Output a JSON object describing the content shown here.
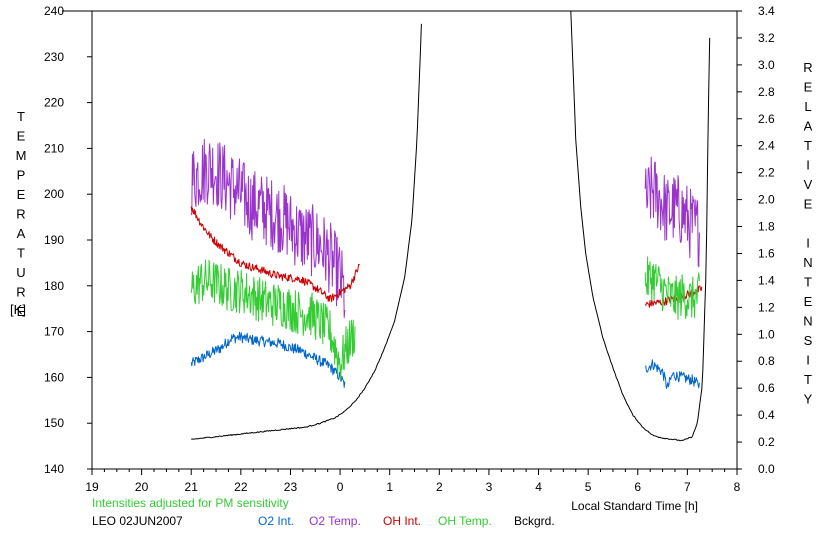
{
  "chart_data": {
    "type": "line",
    "y_left": {
      "label": "TEMPERATURE",
      "unit": "[K]",
      "min": 140,
      "max": 240,
      "ticks": [
        140,
        150,
        160,
        170,
        180,
        190,
        200,
        210,
        220,
        230,
        240
      ]
    },
    "y_right": {
      "label": "RELATIVE INTENSITY",
      "min": 0.0,
      "max": 3.4,
      "ticks": [
        "0.0",
        "0.2",
        "0.4",
        "0.6",
        "0.8",
        "1.0",
        "1.2",
        "1.4",
        "1.6",
        "1.8",
        "2.0",
        "2.2",
        "2.4",
        "2.6",
        "2.8",
        "3.0",
        "3.2",
        "3.4"
      ]
    },
    "x": {
      "label": "Local Standard Time [h]",
      "min": 19,
      "max": 32,
      "tick_labels": [
        "19",
        "20",
        "21",
        "22",
        "23",
        "0",
        "1",
        "2",
        "3",
        "4",
        "5",
        "6",
        "7",
        "8"
      ]
    },
    "note": "Intensities adjusted for PM sensitivity",
    "station": "LEO 02JUN2007",
    "colors": {
      "o2_int": "#0066cc",
      "o2_temp": "#9933cc",
      "oh_int": "#cc0000",
      "oh_temp": "#33cc33",
      "bckgrd": "#000000",
      "note": "#33cc33"
    },
    "series": [
      {
        "key": "o2_int",
        "name": "O2 Int.",
        "axis": "right",
        "color": "#0066cc",
        "segments": [
          [
            [
              21.0,
              0.78
            ],
            [
              21.2,
              0.82
            ],
            [
              21.4,
              0.86
            ],
            [
              21.6,
              0.9
            ],
            [
              21.8,
              0.97
            ],
            [
              22.0,
              0.98
            ],
            [
              22.2,
              0.96
            ],
            [
              22.4,
              0.95
            ],
            [
              22.6,
              0.94
            ],
            [
              22.8,
              0.93
            ],
            [
              23.0,
              0.9
            ],
            [
              23.2,
              0.88
            ],
            [
              23.4,
              0.84
            ],
            [
              23.6,
              0.8
            ],
            [
              23.8,
              0.76
            ],
            [
              24.0,
              0.68
            ],
            [
              24.1,
              0.62
            ]
          ],
          [
            [
              30.15,
              0.74
            ],
            [
              30.3,
              0.78
            ],
            [
              30.5,
              0.72
            ],
            [
              30.6,
              0.6
            ],
            [
              30.7,
              0.7
            ],
            [
              30.9,
              0.68
            ],
            [
              31.1,
              0.66
            ],
            [
              31.25,
              0.62
            ]
          ]
        ]
      },
      {
        "key": "o2_temp",
        "name": "O2 Temp.",
        "axis": "left",
        "color": "#9933cc",
        "segments": [
          [
            [
              21.0,
              203
            ],
            [
              21.2,
              205
            ],
            [
              21.4,
              206
            ],
            [
              21.6,
              204
            ],
            [
              21.8,
              202
            ],
            [
              22.0,
              200
            ],
            [
              22.2,
              198
            ],
            [
              22.4,
              197
            ],
            [
              22.6,
              196
            ],
            [
              22.8,
              195
            ],
            [
              23.0,
              193
            ],
            [
              23.2,
              191
            ],
            [
              23.4,
              190
            ],
            [
              23.6,
              189
            ],
            [
              23.8,
              186
            ],
            [
              24.0,
              182
            ],
            [
              24.1,
              177
            ]
          ],
          [
            [
              30.15,
              198
            ],
            [
              30.3,
              201
            ],
            [
              30.45,
              199
            ],
            [
              30.6,
              196
            ],
            [
              30.75,
              197
            ],
            [
              30.9,
              196
            ],
            [
              31.1,
              193
            ],
            [
              31.25,
              192
            ]
          ]
        ]
      },
      {
        "key": "oh_int",
        "name": "OH Int.",
        "axis": "right",
        "color": "#cc0000",
        "segments": [
          [
            [
              21.0,
              1.95
            ],
            [
              21.2,
              1.82
            ],
            [
              21.4,
              1.72
            ],
            [
              21.6,
              1.65
            ],
            [
              21.8,
              1.59
            ],
            [
              22.0,
              1.53
            ],
            [
              22.2,
              1.5
            ],
            [
              22.4,
              1.48
            ],
            [
              22.6,
              1.45
            ],
            [
              22.8,
              1.43
            ],
            [
              23.0,
              1.42
            ],
            [
              23.2,
              1.41
            ],
            [
              23.4,
              1.37
            ],
            [
              23.6,
              1.32
            ],
            [
              23.8,
              1.26
            ],
            [
              24.0,
              1.31
            ],
            [
              24.2,
              1.36
            ],
            [
              24.4,
              1.52
            ]
          ],
          [
            [
              30.15,
              1.22
            ],
            [
              30.3,
              1.23
            ],
            [
              30.5,
              1.24
            ],
            [
              30.7,
              1.26
            ],
            [
              30.9,
              1.28
            ],
            [
              31.1,
              1.31
            ],
            [
              31.3,
              1.34
            ]
          ]
        ]
      },
      {
        "key": "oh_temp",
        "name": "OH Temp.",
        "axis": "left",
        "color": "#33cc33",
        "segments": [
          [
            [
              21.0,
              179
            ],
            [
              21.2,
              181
            ],
            [
              21.4,
              181
            ],
            [
              21.6,
              180
            ],
            [
              21.8,
              179
            ],
            [
              22.0,
              179
            ],
            [
              22.2,
              178
            ],
            [
              22.4,
              177
            ],
            [
              22.6,
              176
            ],
            [
              22.8,
              176
            ],
            [
              23.0,
              175
            ],
            [
              23.2,
              174
            ],
            [
              23.4,
              174
            ],
            [
              23.6,
              172
            ],
            [
              23.8,
              170
            ],
            [
              24.0,
              163
            ],
            [
              24.15,
              167
            ],
            [
              24.3,
              170
            ]
          ],
          [
            [
              30.15,
              181
            ],
            [
              30.3,
              182
            ],
            [
              30.45,
              180
            ],
            [
              30.6,
              178
            ],
            [
              30.75,
              177
            ],
            [
              30.9,
              178
            ],
            [
              31.1,
              177
            ],
            [
              31.25,
              178
            ]
          ]
        ]
      },
      {
        "key": "bckgrd",
        "name": "Bckgrd.",
        "axis": "right",
        "color": "#000000",
        "segments": [
          [
            [
              21.0,
              0.22
            ],
            [
              21.5,
              0.24
            ],
            [
              22.0,
              0.26
            ],
            [
              22.5,
              0.28
            ],
            [
              23.0,
              0.3
            ],
            [
              23.3,
              0.31
            ],
            [
              23.6,
              0.34
            ],
            [
              23.9,
              0.38
            ],
            [
              24.1,
              0.43
            ],
            [
              24.3,
              0.5
            ],
            [
              24.5,
              0.6
            ],
            [
              24.7,
              0.73
            ],
            [
              24.9,
              0.9
            ],
            [
              25.1,
              1.1
            ],
            [
              25.3,
              1.42
            ],
            [
              25.45,
              1.85
            ],
            [
              25.55,
              2.45
            ],
            [
              25.65,
              3.4
            ]
          ],
          [
            [
              28.65,
              3.4
            ],
            [
              28.75,
              2.45
            ],
            [
              28.85,
              1.95
            ],
            [
              28.95,
              1.6
            ],
            [
              29.1,
              1.27
            ],
            [
              29.3,
              0.97
            ],
            [
              29.5,
              0.75
            ],
            [
              29.7,
              0.55
            ],
            [
              29.9,
              0.4
            ],
            [
              30.1,
              0.31
            ],
            [
              30.3,
              0.25
            ],
            [
              30.5,
              0.23
            ],
            [
              30.7,
              0.22
            ],
            [
              30.9,
              0.21
            ],
            [
              31.1,
              0.24
            ],
            [
              31.2,
              0.34
            ],
            [
              31.3,
              0.62
            ],
            [
              31.38,
              1.5
            ],
            [
              31.42,
              2.6
            ],
            [
              31.46,
              3.4
            ]
          ]
        ]
      }
    ]
  }
}
